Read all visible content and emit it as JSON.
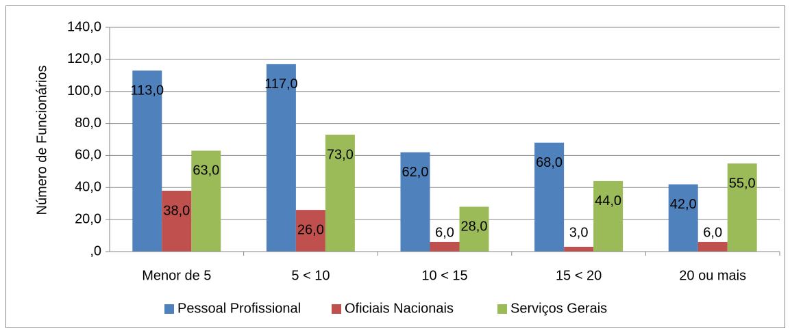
{
  "chart_data": {
    "type": "bar",
    "y_label": "Número de Funcionários",
    "categories": [
      "Menor de 5",
      "5 < 10",
      "10 < 15",
      "15 < 20",
      "20 ou mais"
    ],
    "series": [
      {
        "name": "Pessoal Profissional",
        "color": "#4f81bd",
        "values": [
          113,
          117,
          62,
          68,
          42
        ],
        "value_labels": [
          "113,0",
          "117,0",
          "62,0",
          "68,0",
          "42,0"
        ]
      },
      {
        "name": "Oficiais Nacionais",
        "color": "#c0504d",
        "values": [
          38,
          26,
          6,
          3,
          6
        ],
        "value_labels": [
          "38,0",
          "26,0",
          "6,0",
          "3,0",
          "6,0"
        ]
      },
      {
        "name": "Serviços Gerais",
        "color": "#9bbb59",
        "values": [
          63,
          73,
          28,
          44,
          55
        ],
        "value_labels": [
          "63,0",
          "73,0",
          "28,0",
          "44,0",
          "55,0"
        ]
      }
    ],
    "ylim": [
      0,
      140
    ],
    "yticks": [
      {
        "value": 0,
        "label": ",0"
      },
      {
        "value": 20,
        "label": "20,0"
      },
      {
        "value": 40,
        "label": "40,0"
      },
      {
        "value": 60,
        "label": "60,0"
      },
      {
        "value": 80,
        "label": "80,0"
      },
      {
        "value": 100,
        "label": "100,0"
      },
      {
        "value": 120,
        "label": "120,0"
      },
      {
        "value": 140,
        "label": "140,0"
      }
    ],
    "grid": true,
    "legend": "bottom"
  }
}
